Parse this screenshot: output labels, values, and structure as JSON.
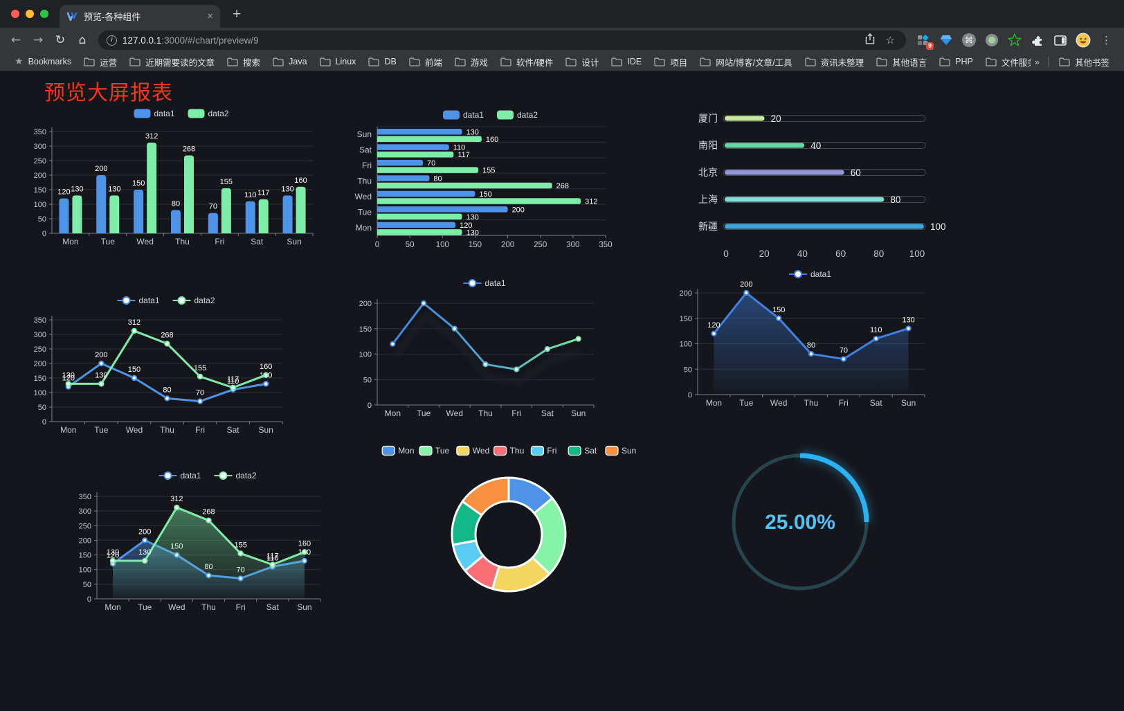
{
  "browser": {
    "tab": {
      "title": "预览-各种组件",
      "close_label": "×",
      "new_tab_label": "+"
    },
    "toolbar": {
      "url_host": "127.0.0.1",
      "url_rest": ":3000/#/chart/preview/9",
      "extension_badge": "9"
    },
    "bookmarks": {
      "label": "Bookmarks",
      "folders": [
        "运营",
        "近期需要读的文章",
        "搜索",
        "Java",
        "Linux",
        "DB",
        "前端",
        "游戏",
        "软件/硬件",
        "设计",
        "IDE",
        "项目",
        "网站/博客/文章/工具",
        "资讯未整理",
        "其他语言",
        "PHP",
        "文件服务器"
      ],
      "overflow": "»",
      "other": "其他书签"
    }
  },
  "page": {
    "title": "预览大屏报表",
    "title_color": "#f5351c"
  },
  "chart_data": [
    {
      "id": "c1",
      "type": "bar",
      "categories": [
        "Mon",
        "Tue",
        "Wed",
        "Thu",
        "Fri",
        "Sat",
        "Sun"
      ],
      "series": [
        {
          "name": "data1",
          "color": "#4d94e8",
          "values": [
            120,
            200,
            150,
            80,
            70,
            110,
            130
          ]
        },
        {
          "name": "data2",
          "color": "#7deda7",
          "values": [
            130,
            130,
            312,
            268,
            155,
            117,
            160
          ]
        }
      ],
      "ylim": [
        0,
        350
      ],
      "ystep": 50,
      "legend_position": "top",
      "grid": true
    },
    {
      "id": "c2",
      "type": "hbar",
      "categories": [
        "Mon",
        "Tue",
        "Wed",
        "Thu",
        "Fri",
        "Sat",
        "Sun"
      ],
      "series": [
        {
          "name": "data1",
          "color": "#4d94e8",
          "values": [
            120,
            200,
            150,
            80,
            70,
            110,
            130
          ]
        },
        {
          "name": "data2",
          "color": "#7deda7",
          "values": [
            130,
            130,
            312,
            268,
            155,
            117,
            160
          ]
        }
      ],
      "xlim": [
        0,
        350
      ],
      "xstep": 50,
      "legend_position": "top",
      "grid": true
    },
    {
      "id": "c3",
      "type": "progress",
      "items": [
        {
          "label": "厦门",
          "value": 20,
          "color": "#cbe79d"
        },
        {
          "label": "南阳",
          "value": 40,
          "color": "#63d9ab"
        },
        {
          "label": "北京",
          "value": 60,
          "color": "#9095d9"
        },
        {
          "label": "上海",
          "value": 80,
          "color": "#82dcd5"
        },
        {
          "label": "新疆",
          "value": 100,
          "color": "#38a7de"
        }
      ],
      "xlim": [
        0,
        100
      ],
      "xticks": [
        0,
        20,
        40,
        60,
        80,
        100
      ]
    },
    {
      "id": "c4",
      "type": "line",
      "categories": [
        "Mon",
        "Tue",
        "Wed",
        "Thu",
        "Fri",
        "Sat",
        "Sun"
      ],
      "series": [
        {
          "name": "data1",
          "color": "#4d94e8",
          "values": [
            120,
            200,
            150,
            80,
            70,
            110,
            130
          ]
        },
        {
          "name": "data2",
          "color": "#7deda7",
          "values": [
            130,
            130,
            312,
            268,
            155,
            117,
            160
          ]
        }
      ],
      "ylim": [
        0,
        350
      ],
      "ystep": 50,
      "labels": true,
      "legend_position": "top",
      "grid": true
    },
    {
      "id": "c5",
      "type": "line",
      "categories": [
        "Mon",
        "Tue",
        "Wed",
        "Thu",
        "Fri",
        "Sat",
        "Sun"
      ],
      "series": [
        {
          "name": "data1",
          "color": "#3f82e6",
          "color2": "#74e99e",
          "values": [
            120,
            200,
            150,
            80,
            70,
            110,
            130
          ]
        }
      ],
      "ylim": [
        0,
        200
      ],
      "ystep": 50,
      "labels": false,
      "shadow": true,
      "legend_position": "top",
      "grid": true
    },
    {
      "id": "c6",
      "type": "line",
      "categories": [
        "Mon",
        "Tue",
        "Wed",
        "Thu",
        "Fri",
        "Sat",
        "Sun"
      ],
      "series": [
        {
          "name": "data1",
          "color": "#3f82e6",
          "area": true,
          "values": [
            120,
            200,
            150,
            80,
            70,
            110,
            130
          ]
        }
      ],
      "ylim": [
        0,
        200
      ],
      "ystep": 50,
      "labels": true,
      "legend_position": "top",
      "grid": true
    },
    {
      "id": "c7",
      "type": "line",
      "categories": [
        "Mon",
        "Tue",
        "Wed",
        "Thu",
        "Fri",
        "Sat",
        "Sun"
      ],
      "series": [
        {
          "name": "data1",
          "color": "#4d94e8",
          "area": true,
          "values": [
            120,
            200,
            150,
            80,
            70,
            110,
            130
          ]
        },
        {
          "name": "data2",
          "color": "#7deda7",
          "area": true,
          "values": [
            130,
            130,
            312,
            268,
            155,
            117,
            160
          ]
        }
      ],
      "ylim": [
        0,
        350
      ],
      "ystep": 50,
      "labels": true,
      "legend_position": "top",
      "grid": true
    },
    {
      "id": "c8",
      "type": "donut",
      "categories": [
        "Mon",
        "Tue",
        "Wed",
        "Thu",
        "Fri",
        "Sat",
        "Sun"
      ],
      "values": [
        120,
        200,
        150,
        80,
        70,
        110,
        130
      ],
      "colors": [
        "#4d94e8",
        "#85f3a8",
        "#f3d55f",
        "#fa6e76",
        "#5bcdf5",
        "#13b886",
        "#f9903f"
      ],
      "legend_position": "top"
    },
    {
      "id": "c9",
      "type": "gauge",
      "percent": 25,
      "label": "25.00%",
      "arc_color": "#2ab2f2",
      "track_color": "#27454f",
      "text_color": "#4fc3f7"
    }
  ]
}
